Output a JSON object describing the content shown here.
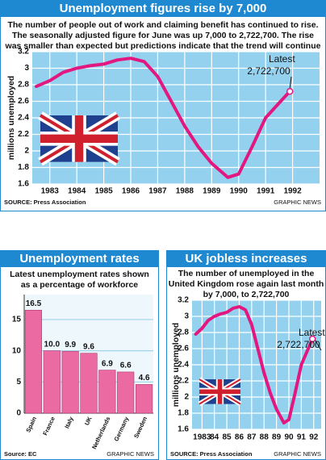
{
  "chart_data": [
    {
      "type": "line",
      "title": "Unemployment figures rise by 7,000",
      "subtitle": [
        "The number of people out of work and claiming benefit has continued to rise.",
        "The seasonally adjusted figure for June was up 7,000 to 2,722,700. The rise",
        "was smaller than expected but predictions indicate that the trend will continue"
      ],
      "y_label": "millions unemployed",
      "x": [
        1982.5,
        1983,
        1983.5,
        1984,
        1984.5,
        1985,
        1985.5,
        1986,
        1986.5,
        1987,
        1987.5,
        1988,
        1988.5,
        1989,
        1989.6,
        1990,
        1990.5,
        1991,
        1991.5,
        1991.9
      ],
      "values": [
        2.78,
        2.85,
        2.95,
        3.0,
        3.03,
        3.05,
        3.1,
        3.12,
        3.08,
        2.9,
        2.6,
        2.3,
        2.05,
        1.85,
        1.68,
        1.72,
        2.05,
        2.4,
        2.58,
        2.72
      ],
      "color": "#e2177f",
      "xlim": [
        1982.35,
        1993.0
      ],
      "xticks": [
        1983,
        1984,
        1985,
        1986,
        1987,
        1988,
        1989,
        1990,
        1991,
        1992
      ],
      "ylim": [
        1.6,
        3.2
      ],
      "yticks": [
        1.6,
        1.8,
        2.0,
        2.2,
        2.4,
        2.6,
        2.8,
        3.0,
        3.2
      ],
      "grid": true,
      "plot_color": "#93d1ee",
      "annotation": [
        "Latest",
        "2,722,700"
      ],
      "source": "SOURCE: Press Association",
      "credit": "GRAPHIC NEWS"
    },
    {
      "type": "bar",
      "title": "Unemployment rates",
      "subtitle": [
        "Latest unemployment rates shown",
        "as a percentage of workforce"
      ],
      "categories": [
        "Spain",
        "France",
        "Italy",
        "UK",
        "Netherlands",
        "Germany",
        "Sweden"
      ],
      "values": [
        16.5,
        10.0,
        9.9,
        9.6,
        6.9,
        6.6,
        4.6
      ],
      "value_labels": [
        "16.5",
        "10.0",
        "9.9",
        "9.6",
        "6.9",
        "6.6",
        "4.6"
      ],
      "color": "#ec6aa2",
      "ylim": [
        0,
        19
      ],
      "yticks": [
        0,
        5,
        10,
        15
      ],
      "grid": true,
      "plot_color": "#eef7fc",
      "source": "Source: EC",
      "credit": "GRAPHIC NEWS"
    },
    {
      "type": "line",
      "title": "UK jobless increases",
      "subtitle": [
        "The number of unemployed in the",
        "United Kingdom rose again last month",
        "by 7,000, to 2,722,700"
      ],
      "y_label": "millions unemployed",
      "x": [
        1982.5,
        1983,
        1983.5,
        1984,
        1984.5,
        1985,
        1985.5,
        1986,
        1986.5,
        1987,
        1987.5,
        1988,
        1988.5,
        1989,
        1989.6,
        1990,
        1990.5,
        1991,
        1991.5,
        1991.9
      ],
      "values": [
        2.78,
        2.85,
        2.95,
        3.0,
        3.03,
        3.05,
        3.1,
        3.12,
        3.08,
        2.9,
        2.6,
        2.3,
        2.05,
        1.85,
        1.68,
        1.72,
        2.05,
        2.4,
        2.58,
        2.72
      ],
      "color": "#e2177f",
      "xlim": [
        1982.2,
        1992.6
      ],
      "xticks": [
        1983,
        {
          "value": 1984,
          "label": "84"
        },
        {
          "value": 1985,
          "label": "85"
        },
        {
          "value": 1986,
          "label": "86"
        },
        {
          "value": 1987,
          "label": "87"
        },
        {
          "value": 1988,
          "label": "88"
        },
        {
          "value": 1989,
          "label": "89"
        },
        {
          "value": 1990,
          "label": "90"
        },
        {
          "value": 1991,
          "label": "91"
        },
        {
          "value": 1992,
          "label": "92"
        }
      ],
      "ylim": [
        1.6,
        3.2
      ],
      "yticks": [
        1.6,
        1.8,
        2.0,
        2.2,
        2.4,
        2.6,
        2.8,
        3.0,
        3.2
      ],
      "grid": true,
      "plot_color": "#93d1ee",
      "annotation": [
        "Latest",
        "2,722,700"
      ],
      "source": "SOURCE: Press Association",
      "credit": "GRAPHIC NEWS"
    }
  ]
}
